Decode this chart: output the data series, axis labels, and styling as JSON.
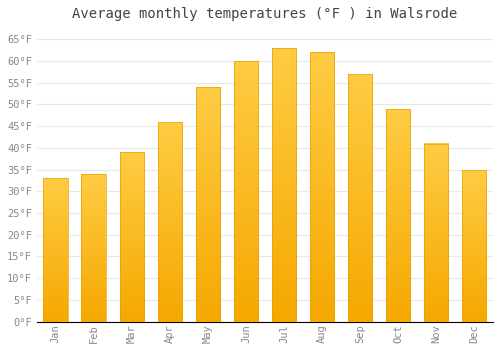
{
  "title": "Average monthly temperatures (°F ) in Walsrode",
  "months": [
    "Jan",
    "Feb",
    "Mar",
    "Apr",
    "May",
    "Jun",
    "Jul",
    "Aug",
    "Sep",
    "Oct",
    "Nov",
    "Dec"
  ],
  "values": [
    33,
    34,
    39,
    46,
    54,
    60,
    63,
    62,
    57,
    49,
    41,
    35
  ],
  "bar_color_top": "#FFCC44",
  "bar_color_bottom": "#F5A800",
  "bar_edge_color": "#E8A000",
  "ylim": [
    0,
    68
  ],
  "yticks": [
    0,
    5,
    10,
    15,
    20,
    25,
    30,
    35,
    40,
    45,
    50,
    55,
    60,
    65
  ],
  "ytick_labels": [
    "0°F",
    "5°F",
    "10°F",
    "15°F",
    "20°F",
    "25°F",
    "30°F",
    "35°F",
    "40°F",
    "45°F",
    "50°F",
    "55°F",
    "60°F",
    "65°F"
  ],
  "bg_color": "#FFFFFF",
  "grid_color": "#E8E8E8",
  "title_fontsize": 10,
  "tick_fontsize": 7.5,
  "font_family": "monospace",
  "tick_color": "#888888",
  "title_color": "#444444"
}
